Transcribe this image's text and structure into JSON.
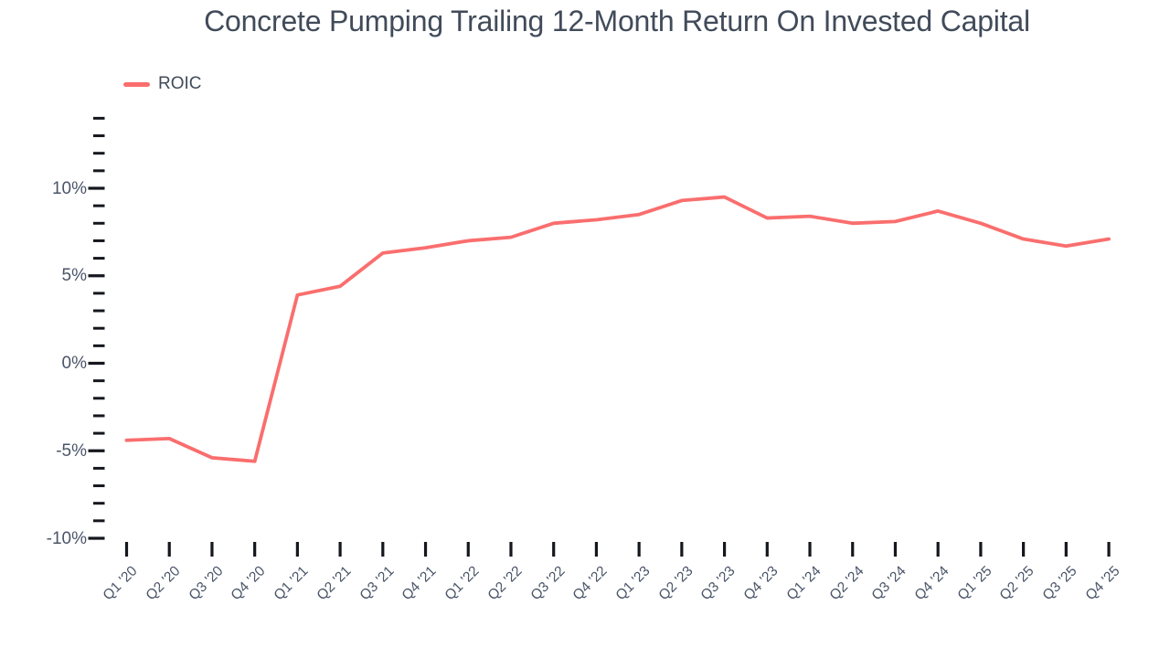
{
  "chart_data": {
    "type": "line",
    "title": "Concrete Pumping Trailing 12-Month Return On Invested Capital",
    "xlabel": "",
    "ylabel": "",
    "categories": [
      "Q1 '20",
      "Q2 '20",
      "Q3 '20",
      "Q4 '20",
      "Q1 '21",
      "Q2 '21",
      "Q3 '21",
      "Q4 '21",
      "Q1 '22",
      "Q2 '22",
      "Q3 '22",
      "Q4 '22",
      "Q1 '23",
      "Q2 '23",
      "Q3 '23",
      "Q4 '23",
      "Q1 '24",
      "Q2 '24",
      "Q3 '24",
      "Q4 '24",
      "Q1 '25",
      "Q2 '25",
      "Q3 '25",
      "Q4 '25"
    ],
    "series": [
      {
        "name": "ROIC",
        "color": "#fa6e6e",
        "values": [
          -4.4,
          -4.3,
          -5.4,
          -5.6,
          3.9,
          4.4,
          6.3,
          6.6,
          7.0,
          7.2,
          8.0,
          8.2,
          8.5,
          9.3,
          9.5,
          8.3,
          8.4,
          8.0,
          8.1,
          8.7,
          8.0,
          7.1,
          6.7,
          7.1
        ]
      }
    ],
    "unit": "%",
    "ylim": [
      -10,
      14
    ],
    "ytick_major": {
      "values": [
        -10,
        -5,
        0,
        5,
        10
      ],
      "labels": [
        "-10%",
        "-5%",
        "0%",
        "5%",
        "10%"
      ]
    },
    "ytick_minor_step": 1,
    "grid": false,
    "legend_position": "top-left",
    "colors": {
      "line": "#fa6e6e",
      "title_text": "#414b5a",
      "axis_text": "#4a5568",
      "tick": "#14171d",
      "background": "#ffffff"
    }
  }
}
